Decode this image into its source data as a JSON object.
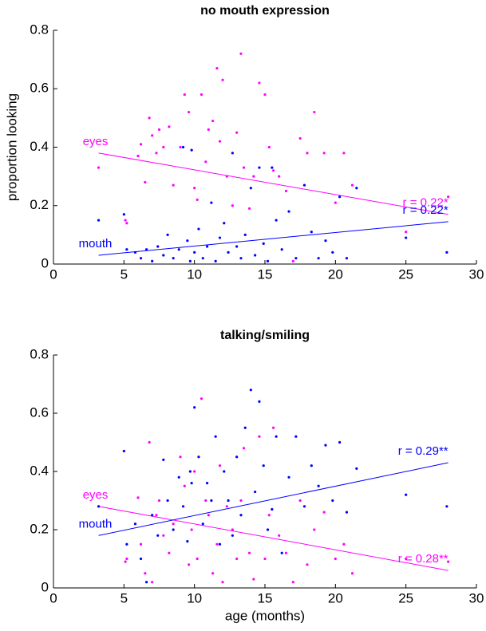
{
  "chart_data": [
    {
      "type": "scatter",
      "title": "no mouth expression",
      "ylabel": "proportion looking",
      "xlim": [
        0,
        30
      ],
      "ylim": [
        0,
        0.8
      ],
      "xticks": [
        0,
        5,
        10,
        15,
        20,
        25,
        30
      ],
      "yticks": [
        0,
        0.2,
        0.4,
        0.6,
        0.8
      ],
      "series": [
        {
          "name": "eyes",
          "color": "#ff00ff",
          "annotation": "r = 0.22*",
          "x": [
            3.2,
            5.1,
            5.2,
            6,
            6.2,
            6.5,
            6.8,
            7,
            7.3,
            7.5,
            7.8,
            8.2,
            8.5,
            9,
            9.3,
            9.6,
            9.8,
            10,
            10.2,
            10.5,
            10.8,
            11,
            11.3,
            11.6,
            11.8,
            12,
            12.3,
            12.7,
            13,
            13.3,
            13.5,
            13.9,
            14.2,
            14.6,
            15,
            15.3,
            15.6,
            16,
            16.5,
            17,
            17.5,
            18,
            18.5,
            19.2,
            20,
            20.6,
            21.2,
            25,
            28
          ],
          "y": [
            0.33,
            0.15,
            0.14,
            0.37,
            0.41,
            0.28,
            0.5,
            0.44,
            0.38,
            0.46,
            0.4,
            0.47,
            0.27,
            0.4,
            0.58,
            0.52,
            0.39,
            0.26,
            0.22,
            0.58,
            0.35,
            0.46,
            0.49,
            0.67,
            0.42,
            0.63,
            0.3,
            0.2,
            0.45,
            0.72,
            0.33,
            0.19,
            0.3,
            0.62,
            0.58,
            0.4,
            0.32,
            0.3,
            0.25,
            0.01,
            0.43,
            0.38,
            0.52,
            0.38,
            0.21,
            0.38,
            0.27,
            0.11,
            0.23
          ],
          "fit": {
            "x": [
              3.2,
              28
            ],
            "y": [
              0.38,
              0.17
            ]
          }
        },
        {
          "name": "mouth",
          "color": "#0000ff",
          "annotation": "r = 0.22*",
          "x": [
            3.2,
            5,
            5.2,
            5.8,
            6.2,
            6.6,
            7,
            7.4,
            7.8,
            8.1,
            8.5,
            8.9,
            9.2,
            9.5,
            9.7,
            10,
            10.3,
            10.6,
            10.9,
            11.2,
            11.5,
            11.8,
            12.1,
            12.4,
            12.7,
            13,
            13.3,
            13.6,
            14,
            14.3,
            14.6,
            14.9,
            15.2,
            15.5,
            15.8,
            16.2,
            16.7,
            17.2,
            17.8,
            18.3,
            18.8,
            19.3,
            19.8,
            20.3,
            20.8,
            21.5,
            25,
            27.9,
            9.8
          ],
          "y": [
            0.15,
            0.17,
            0.05,
            0.04,
            0.02,
            0.05,
            0.01,
            0.06,
            0.03,
            0.1,
            0.02,
            0.05,
            0.4,
            0.08,
            0.01,
            0.04,
            0.12,
            0.02,
            0.06,
            0.21,
            0.01,
            0.09,
            0.14,
            0.04,
            0.38,
            0.06,
            0.02,
            0.1,
            0.26,
            0.03,
            0.33,
            0.07,
            0.01,
            0.33,
            0.15,
            0.05,
            0.18,
            0.02,
            0.27,
            0.11,
            0.02,
            0.08,
            0.04,
            0.23,
            0.02,
            0.26,
            0.09,
            0.04,
            0.39
          ],
          "fit": {
            "x": [
              3.2,
              28
            ],
            "y": [
              0.03,
              0.145
            ]
          }
        }
      ]
    },
    {
      "type": "scatter",
      "title": "talking/smiling",
      "xlabel": "age (months)",
      "xlim": [
        0,
        30
      ],
      "ylim": [
        0,
        0.8
      ],
      "xticks": [
        0,
        5,
        10,
        15,
        20,
        25,
        30
      ],
      "yticks": [
        0,
        0.2,
        0.4,
        0.6,
        0.8
      ],
      "series": [
        {
          "name": "eyes",
          "color": "#ff00ff",
          "annotation": "r = 0.28**",
          "x": [
            3.2,
            5.1,
            5.2,
            6,
            6.2,
            6.5,
            6.8,
            7,
            7.3,
            7.5,
            7.8,
            8.2,
            8.5,
            9,
            9.3,
            9.6,
            9.8,
            10,
            10.5,
            10.2,
            10.8,
            11,
            11.3,
            11.6,
            11.8,
            12,
            12.3,
            12.7,
            13,
            13.3,
            13.5,
            13.9,
            14.2,
            14.6,
            15,
            15.3,
            15.6,
            16,
            16.5,
            17,
            17.5,
            18,
            18.5,
            19.2,
            20,
            20.6,
            21.2,
            25,
            28
          ],
          "y": [
            0.28,
            0.09,
            0.1,
            0.31,
            0.15,
            0.05,
            0.5,
            0.02,
            0.25,
            0.3,
            0.18,
            0.12,
            0.22,
            0.45,
            0.35,
            0.08,
            0.2,
            0.4,
            0.65,
            0.1,
            0.3,
            0.25,
            0.05,
            0.15,
            0.42,
            0.02,
            0.28,
            0.2,
            0.1,
            0.3,
            0.48,
            0.12,
            0.03,
            0.52,
            0.1,
            0.25,
            0.55,
            0.18,
            0.12,
            0.02,
            0.3,
            0.08,
            0.2,
            0.26,
            0.1,
            0.15,
            0.05,
            0.1,
            0.09
          ],
          "fit": {
            "x": [
              3.2,
              28
            ],
            "y": [
              0.28,
              0.06
            ]
          }
        },
        {
          "name": "mouth",
          "color": "#0000ff",
          "annotation": "r = 0.29**",
          "x": [
            3.2,
            5,
            5.2,
            5.8,
            6.2,
            6.6,
            7,
            7.4,
            7.8,
            8.1,
            8.5,
            8.9,
            9.2,
            9.5,
            9.7,
            10,
            10.3,
            10.6,
            10.9,
            11.2,
            11.5,
            11.8,
            12.1,
            12.4,
            12.7,
            13,
            13.3,
            13.6,
            14,
            14.3,
            14.6,
            14.9,
            15.2,
            15.5,
            15.8,
            16.2,
            16.7,
            17.2,
            17.8,
            18.3,
            18.8,
            19.3,
            19.8,
            20.3,
            20.8,
            21.5,
            25,
            27.9,
            9.8
          ],
          "y": [
            0.28,
            0.47,
            0.15,
            0.22,
            0.1,
            0.02,
            0.25,
            0.18,
            0.44,
            0.3,
            0.2,
            0.38,
            0.28,
            0.16,
            0.4,
            0.62,
            0.45,
            0.22,
            0.36,
            0.3,
            0.52,
            0.15,
            0.4,
            0.3,
            0.18,
            0.45,
            0.25,
            0.55,
            0.68,
            0.33,
            0.64,
            0.42,
            0.2,
            0.27,
            0.52,
            0.12,
            0.38,
            0.52,
            0.28,
            0.42,
            0.35,
            0.49,
            0.3,
            0.5,
            0.26,
            0.41,
            0.32,
            0.28,
            0.36
          ],
          "fit": {
            "x": [
              3.2,
              28
            ],
            "y": [
              0.18,
              0.43
            ]
          }
        }
      ]
    }
  ]
}
